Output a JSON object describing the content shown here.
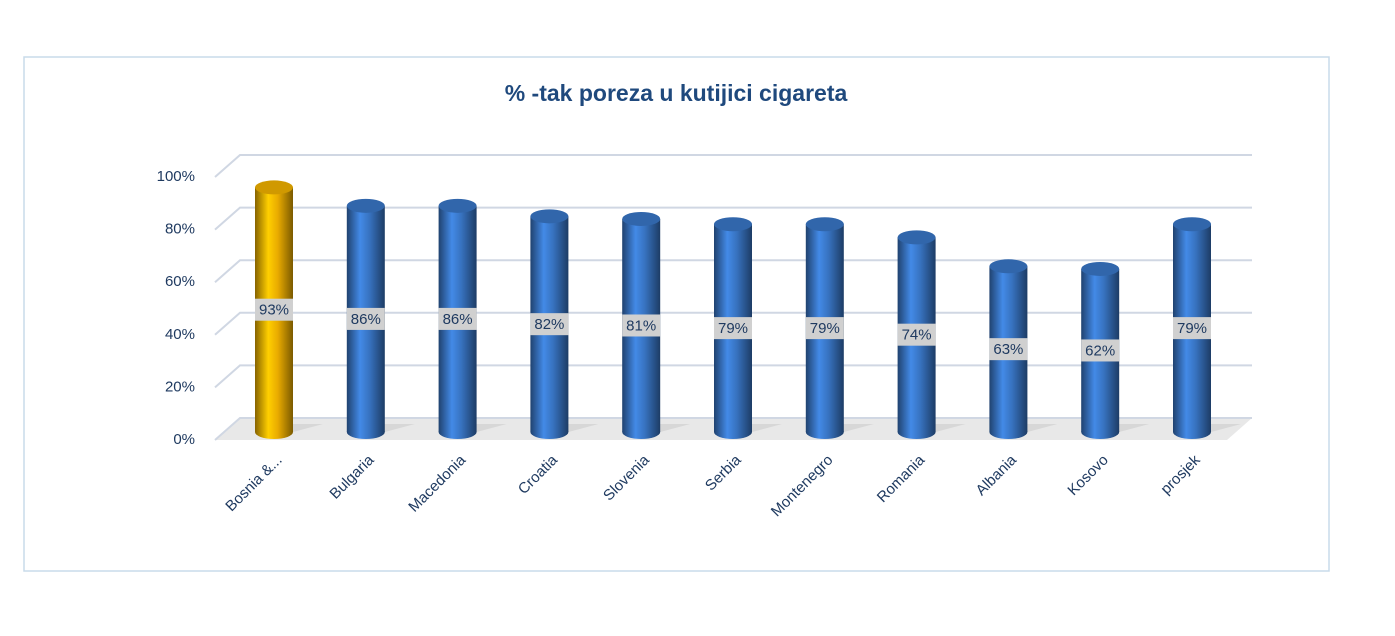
{
  "chart_data": {
    "type": "bar",
    "title": "% -tak poreza u kutijici cigareta",
    "categories": [
      "Bosnia &...",
      "Bulgaria",
      "Macedonia",
      "Croatia",
      "Slovenia",
      "Serbia",
      "Montenegro",
      "Romania",
      "Albania",
      "Kosovo",
      "prosjek"
    ],
    "values": [
      93,
      86,
      86,
      82,
      81,
      79,
      79,
      74,
      63,
      62,
      79
    ],
    "value_labels": [
      "93%",
      "86%",
      "86%",
      "82%",
      "81%",
      "79%",
      "79%",
      "74%",
      "63%",
      "62%",
      "79%"
    ],
    "colors": [
      "#f5b400",
      "#3a78c9",
      "#3a78c9",
      "#3a78c9",
      "#3a78c9",
      "#3a78c9",
      "#3a78c9",
      "#3a78c9",
      "#3a78c9",
      "#3a78c9",
      "#3a78c9"
    ],
    "ylim": [
      0,
      100
    ],
    "yticks": [
      {
        "value": 0,
        "label": "0%"
      },
      {
        "value": 20,
        "label": "20%"
      },
      {
        "value": 40,
        "label": "40%"
      },
      {
        "value": 60,
        "label": "60%"
      },
      {
        "value": 80,
        "label": "80%"
      },
      {
        "value": 100,
        "label": "100%"
      }
    ],
    "grid": true
  }
}
